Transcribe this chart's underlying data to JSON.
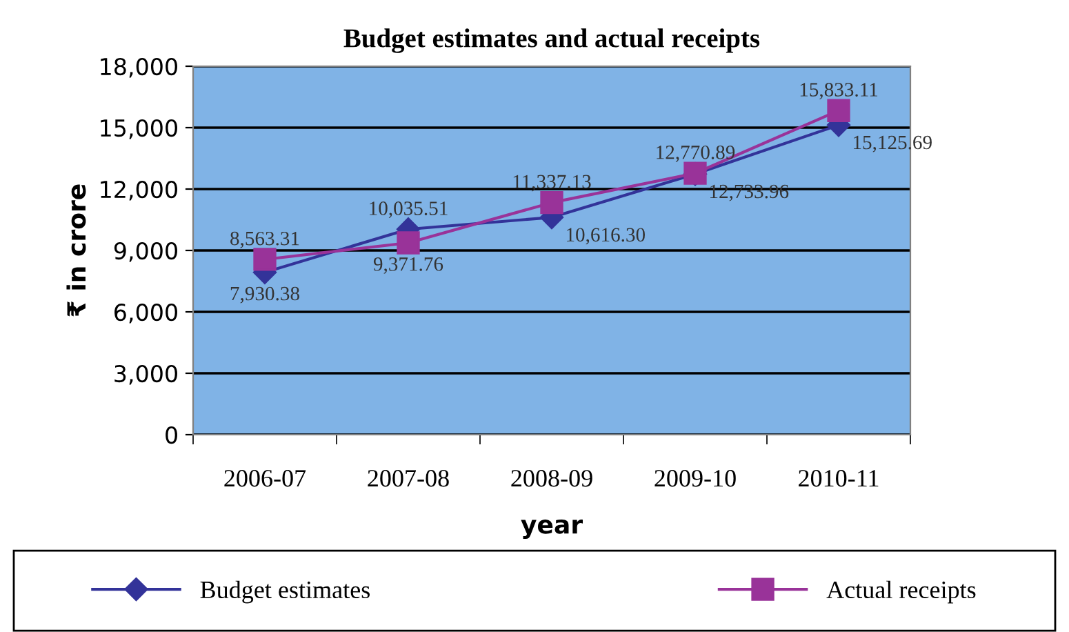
{
  "chart_data": {
    "type": "line",
    "title": "Budget estimates and actual receipts",
    "xlabel": "year",
    "ylabel": "₹ in crore",
    "categories": [
      "2006-07",
      "2007-08",
      "2008-09",
      "2009-10",
      "2010-11"
    ],
    "series": [
      {
        "name": "Budget estimates",
        "color": "#333399",
        "marker": "diamond",
        "values": [
          7930.38,
          10035.51,
          10616.3,
          12733.96,
          15125.69
        ],
        "value_labels": [
          "7,930.38",
          "10,035.51",
          "10,616.30",
          "12,733.96",
          "15,125.69"
        ]
      },
      {
        "name": "Actual receipts",
        "color": "#993399",
        "marker": "square",
        "values": [
          8563.31,
          9371.76,
          11337.13,
          12770.89,
          15833.11
        ],
        "value_labels": [
          "8,563.31",
          "9,371.76",
          "11,337.13",
          "12,770.89",
          "15,833.11"
        ]
      }
    ],
    "ylim": [
      0,
      18000
    ],
    "yticks": [
      0,
      {
        "value": 3000,
        "label": "3,000"
      },
      {
        "value": 6000,
        "label": "6,000"
      },
      {
        "value": 9000,
        "label": "9,000"
      },
      {
        "value": 12000,
        "label": "12,000"
      },
      {
        "value": 15000,
        "label": "15,000"
      },
      {
        "value": 18000,
        "label": "18,000"
      }
    ],
    "grid": "y",
    "legend": "bottom",
    "line_style": "solid"
  }
}
